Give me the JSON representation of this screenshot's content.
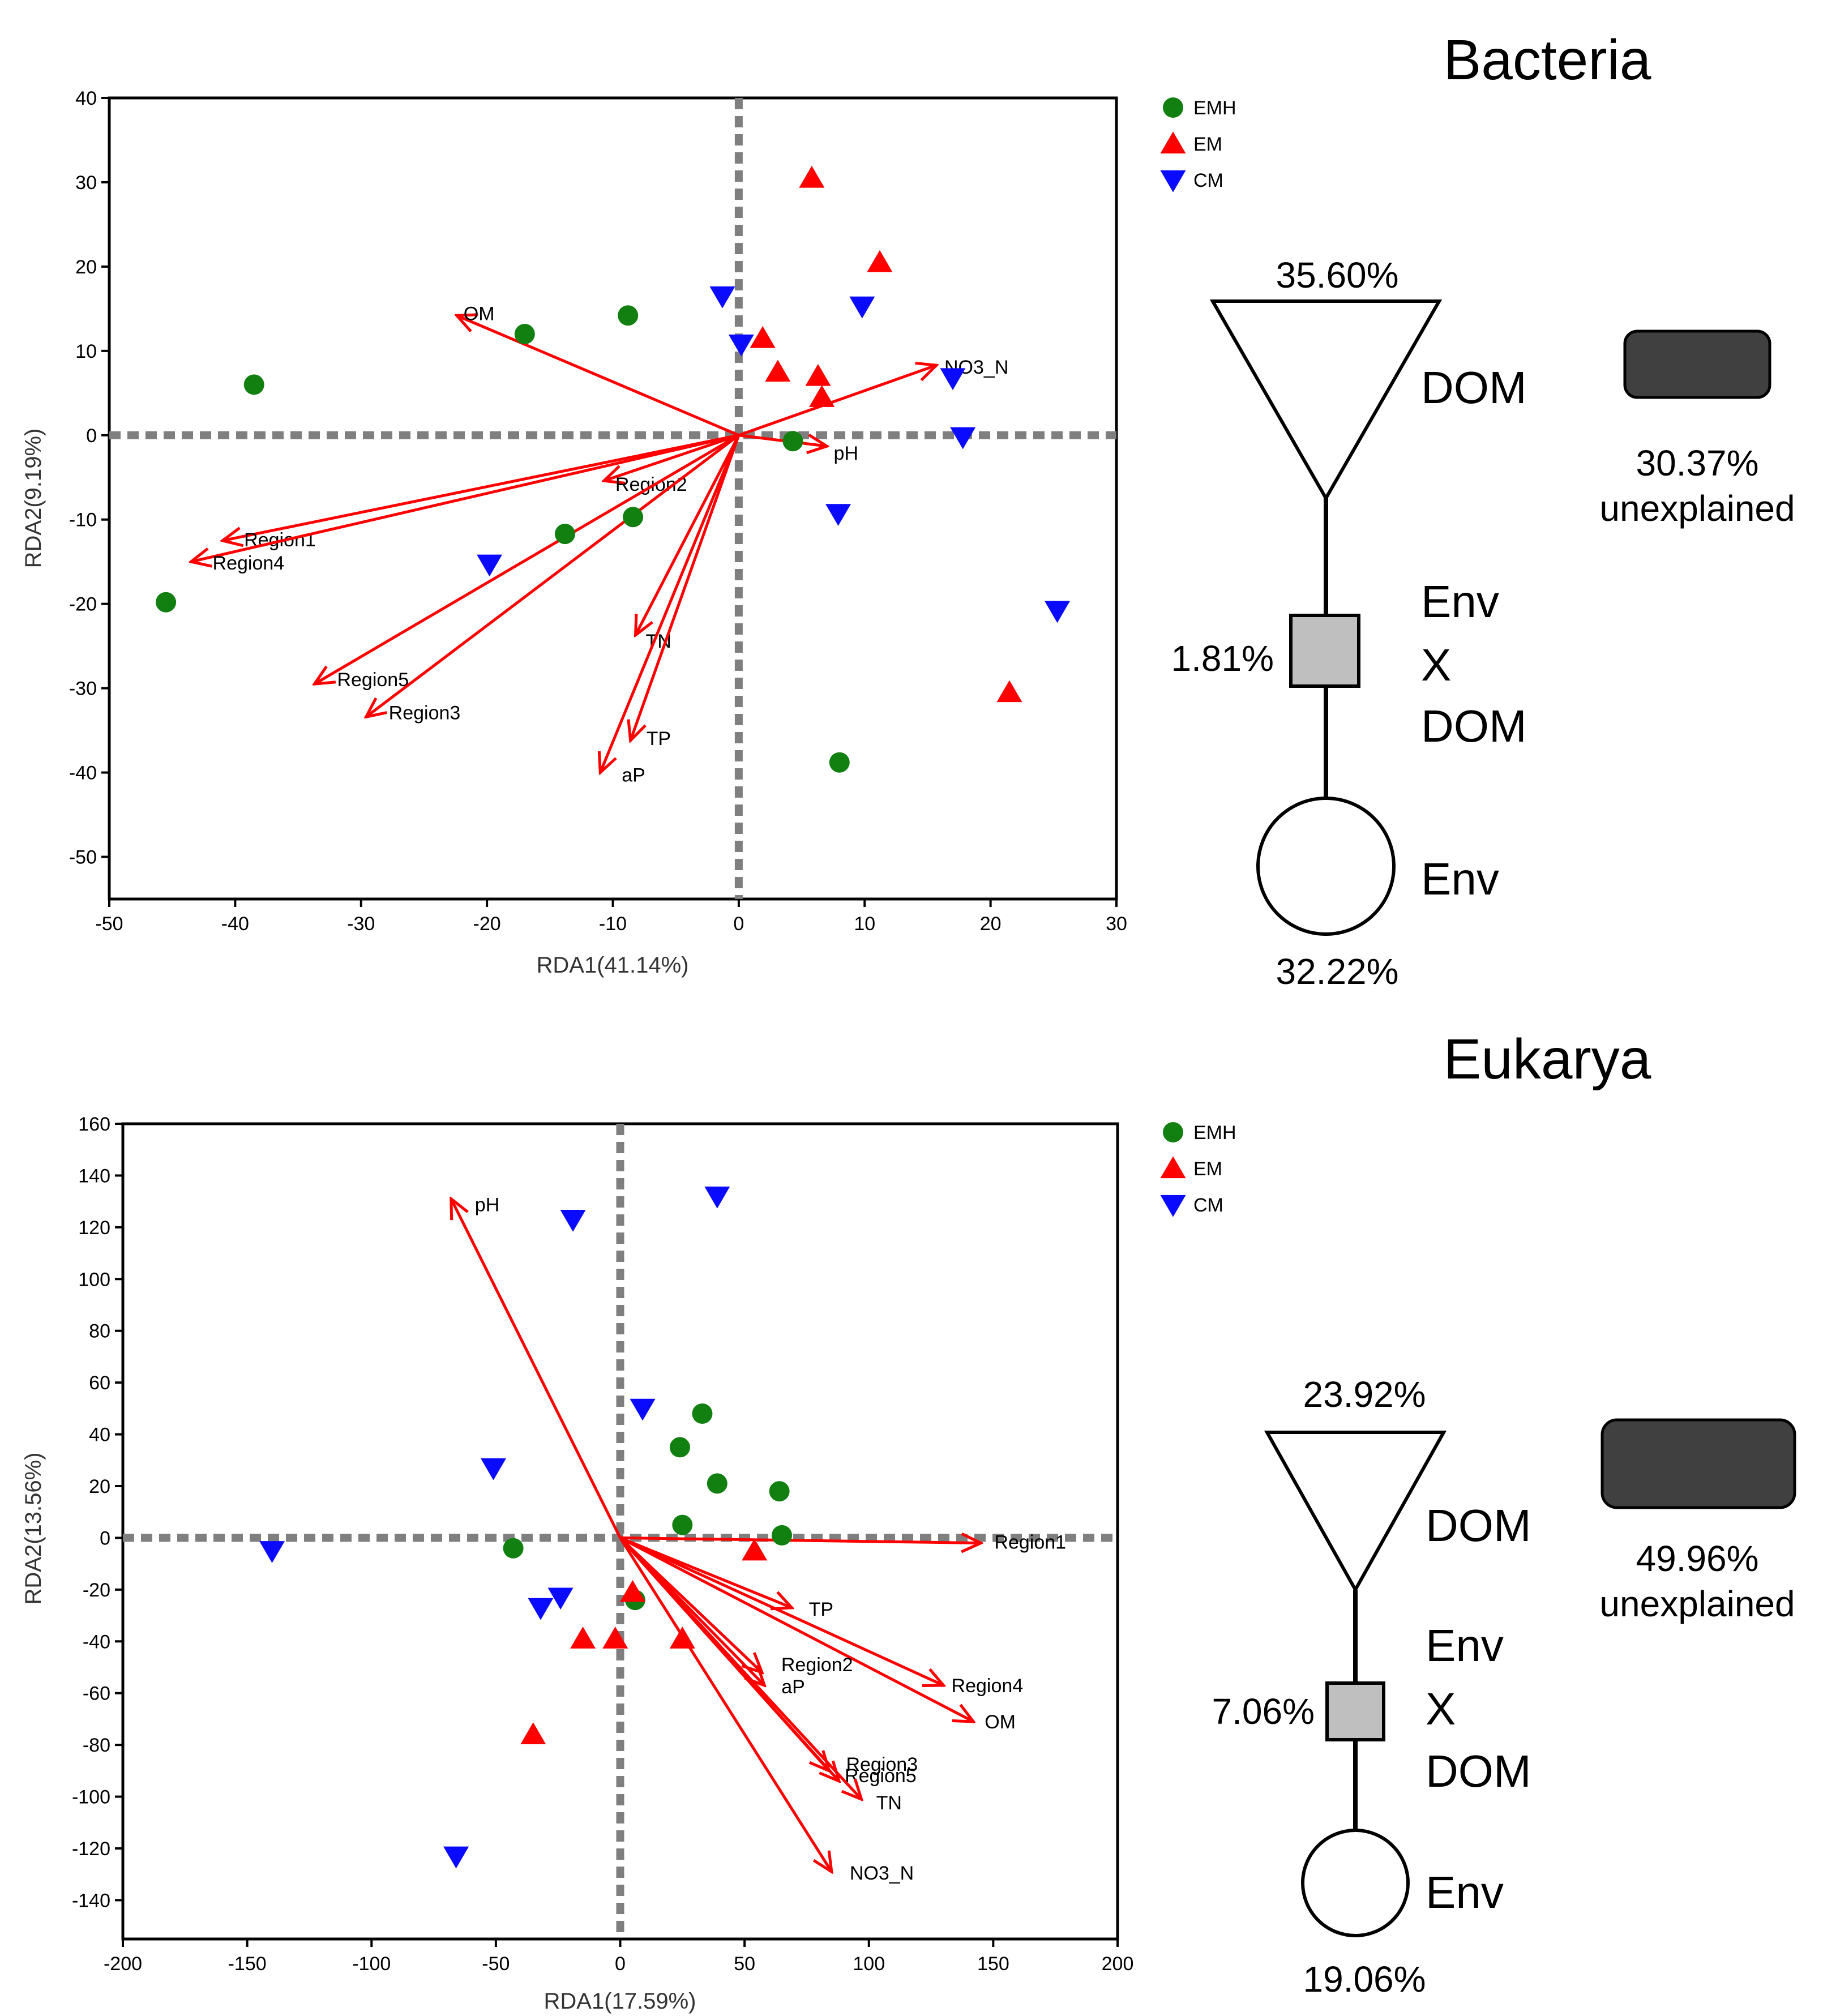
{
  "colors": {
    "EMH": "#118011",
    "EM": "#ff0000",
    "CM": "#0a0aff",
    "arrow": "#ff0000",
    "refline": "#7f7f7f",
    "box_fill": "#bfbfbf",
    "unexplained_fill": "#404040"
  },
  "chart_data": [
    {
      "type": "scatter",
      "panel": "Bacteria",
      "title": "Bacteria",
      "xlabel": "RDA1(41.14%)",
      "ylabel": "RDA2(9.19%)",
      "xlim": [
        -50,
        30
      ],
      "ylim": [
        -55,
        40
      ],
      "xticks": [
        -50,
        -40,
        -30,
        -20,
        -10,
        0,
        10,
        20,
        30
      ],
      "yticks": [
        -50,
        -40,
        -30,
        -20,
        -10,
        0,
        10,
        20,
        30,
        40
      ],
      "legend": {
        "position": "top-right-outside",
        "entries": [
          "EMH",
          "EM",
          "CM"
        ]
      },
      "series": [
        {
          "name": "EMH",
          "marker": "circle",
          "points": [
            [
              -38.5,
              6
            ],
            [
              -17,
              12
            ],
            [
              -8.8,
              14.2
            ],
            [
              4.3,
              -0.7
            ],
            [
              -13.8,
              -11.7
            ],
            [
              -8.4,
              -9.7
            ],
            [
              -45.5,
              -19.8
            ],
            [
              8,
              -38.8
            ]
          ]
        },
        {
          "name": "EM",
          "marker": "triangle-up",
          "points": [
            [
              5.8,
              30.5
            ],
            [
              11.2,
              20.5
            ],
            [
              1.9,
              11.5
            ],
            [
              3.1,
              7.5
            ],
            [
              6.3,
              7
            ],
            [
              6.6,
              4.5
            ],
            [
              21.5,
              -30.5
            ]
          ]
        },
        {
          "name": "CM",
          "marker": "triangle-down",
          "points": [
            [
              -1.3,
              16.5
            ],
            [
              9.8,
              15.3
            ],
            [
              0.2,
              10.8
            ],
            [
              17,
              6.8
            ],
            [
              17.8,
              -0.2
            ],
            [
              7.9,
              -9.3
            ],
            [
              25.3,
              -20.8
            ],
            [
              -19.8,
              -15.3
            ]
          ]
        }
      ],
      "arrows": [
        {
          "label": "OM",
          "x": -22.4,
          "y": 14.2
        },
        {
          "label": "NO3_N",
          "x": 15.7,
          "y": 8.3
        },
        {
          "label": "pH",
          "x": 7,
          "y": -1.3
        },
        {
          "label": "Region2",
          "x": -10.7,
          "y": -5.4
        },
        {
          "label": "Region1",
          "x": -41,
          "y": -12.5
        },
        {
          "label": "Region4",
          "x": -43.5,
          "y": -15
        },
        {
          "label": "Region5",
          "x": -33.7,
          "y": -29.5
        },
        {
          "label": "Region3",
          "x": -29.6,
          "y": -33.4
        },
        {
          "label": "TN",
          "x": -8.2,
          "y": -23.7
        },
        {
          "label": "TP",
          "x": -8.6,
          "y": -36.2
        },
        {
          "label": "aP",
          "x": -11,
          "y": -40
        }
      ]
    },
    {
      "type": "scatter",
      "panel": "Eukarya",
      "title": "Eukarya",
      "xlabel": "RDA1(17.59%)",
      "ylabel": "RDA2(13.56%)",
      "xlim": [
        -200,
        200
      ],
      "ylim": [
        -155,
        160
      ],
      "xticks": [
        -200,
        -150,
        -100,
        -50,
        0,
        50,
        100,
        150,
        200
      ],
      "yticks": [
        -140,
        -120,
        -100,
        -80,
        -60,
        -40,
        -20,
        0,
        20,
        40,
        60,
        80,
        100,
        120,
        140,
        160
      ],
      "legend": {
        "position": "top-right-outside",
        "entries": [
          "EMH",
          "EM",
          "CM"
        ]
      },
      "series": [
        {
          "name": "EMH",
          "marker": "circle",
          "points": [
            [
              33,
              48
            ],
            [
              24,
              35
            ],
            [
              39,
              21
            ],
            [
              64,
              18
            ],
            [
              25,
              5
            ],
            [
              65,
              1
            ],
            [
              -43,
              -4
            ],
            [
              6,
              -24
            ]
          ]
        },
        {
          "name": "EM",
          "marker": "triangle-up",
          "points": [
            [
              54,
              -5
            ],
            [
              5,
              -21
            ],
            [
              25,
              -39
            ],
            [
              -15,
              -39
            ],
            [
              -2,
              -39
            ],
            [
              -35,
              -76
            ]
          ]
        },
        {
          "name": "CM",
          "marker": "triangle-down",
          "points": [
            [
              39,
              132
            ],
            [
              -19,
              123
            ],
            [
              9,
              50
            ],
            [
              -51,
              27
            ],
            [
              -140,
              -5
            ],
            [
              -24,
              -23
            ],
            [
              -32,
              -27
            ],
            [
              -66,
              -123
            ]
          ]
        }
      ],
      "arrows": [
        {
          "label": "pH",
          "x": -68,
          "y": 131
        },
        {
          "label": "Region1",
          "x": 145,
          "y": -2
        },
        {
          "label": "TP",
          "x": 69,
          "y": -27
        },
        {
          "label": "Region4",
          "x": 130,
          "y": -57
        },
        {
          "label": "OM",
          "x": 142,
          "y": -71
        },
        {
          "label": "Region2",
          "x": 57,
          "y": -52
        },
        {
          "label": "aP",
          "x": 58,
          "y": -57
        },
        {
          "label": "Region3",
          "x": 84,
          "y": -90
        },
        {
          "label": "Region5",
          "x": 88,
          "y": -94
        },
        {
          "label": "TN",
          "x": 97,
          "y": -101
        },
        {
          "label": "NO3_N",
          "x": 85,
          "y": -129
        }
      ]
    }
  ],
  "bacteria_partition": {
    "title": "Bacteria",
    "dom_pct": "35.60%",
    "dom_label": "DOM",
    "interaction_pct": "1.81%",
    "interaction_label_1": "Env",
    "interaction_label_2": "X",
    "interaction_label_3": "DOM",
    "env_label": "Env",
    "env_pct": "32.22%",
    "unexplained_pct": "30.37%",
    "unexplained_label": "unexplained"
  },
  "eukarya_partition": {
    "title": "Eukarya",
    "dom_pct": "23.92%",
    "dom_label": "DOM",
    "interaction_pct": "7.06%",
    "interaction_label_1": "Env",
    "interaction_label_2": "X",
    "interaction_label_3": "DOM",
    "env_label": "Env",
    "env_pct": "19.06%",
    "unexplained_pct": "49.96%",
    "unexplained_label": "unexplained"
  }
}
